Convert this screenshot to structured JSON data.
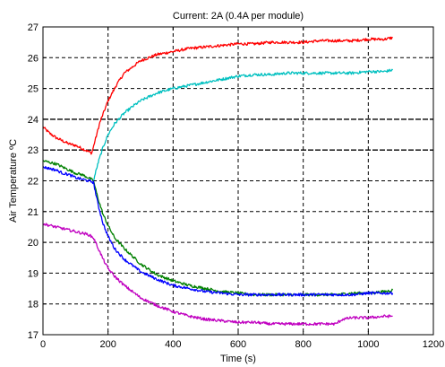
{
  "chart_data": {
    "type": "line",
    "title": "Current: 2A (0.4A per module)",
    "xlabel": "Time (s)",
    "ylabel": "Air Temperature ºC",
    "xlim": [
      0,
      1200
    ],
    "ylim": [
      17,
      27
    ],
    "x_ticks": [
      0,
      200,
      400,
      600,
      800,
      1000,
      1200
    ],
    "y_ticks": [
      17,
      18,
      19,
      20,
      21,
      22,
      23,
      24,
      25,
      26,
      27
    ],
    "grid": true,
    "grid_style": "dashed",
    "emphasized_y_gridlines": [
      23,
      24
    ],
    "legend": "none",
    "series": [
      {
        "color": "#ff0000",
        "x": [
          0,
          20,
          40,
          60,
          80,
          100,
          120,
          140,
          150,
          160,
          175,
          200,
          225,
          250,
          300,
          350,
          400,
          450,
          500,
          550,
          600,
          650,
          700,
          750,
          800,
          850,
          900,
          950,
          1000,
          1050,
          1075
        ],
        "y": [
          23.75,
          23.55,
          23.4,
          23.3,
          23.2,
          23.15,
          23.05,
          22.95,
          22.9,
          23.3,
          23.9,
          24.6,
          25.1,
          25.5,
          25.9,
          26.1,
          26.2,
          26.3,
          26.35,
          26.4,
          26.45,
          26.45,
          26.5,
          26.5,
          26.5,
          26.55,
          26.55,
          26.55,
          26.6,
          26.6,
          26.65
        ]
      },
      {
        "color": "#00c0c0",
        "x": [
          155,
          170,
          185,
          200,
          220,
          250,
          280,
          300,
          350,
          400,
          450,
          500,
          550,
          600,
          650,
          700,
          750,
          800,
          850,
          900,
          950,
          1000,
          1050,
          1075
        ],
        "y": [
          22.0,
          22.6,
          23.1,
          23.5,
          23.85,
          24.2,
          24.45,
          24.6,
          24.85,
          25.0,
          25.1,
          25.2,
          25.3,
          25.4,
          25.45,
          25.45,
          25.5,
          25.5,
          25.5,
          25.5,
          25.5,
          25.55,
          25.55,
          25.6
        ]
      },
      {
        "color": "#008000",
        "x": [
          0,
          20,
          40,
          60,
          80,
          100,
          120,
          140,
          155,
          170,
          185,
          200,
          220,
          250,
          300,
          350,
          400,
          450,
          500,
          550,
          600,
          650,
          700,
          750,
          800,
          850,
          900,
          950,
          1000,
          1050,
          1075
        ],
        "y": [
          22.65,
          22.6,
          22.55,
          22.45,
          22.35,
          22.25,
          22.2,
          22.1,
          22.0,
          21.4,
          20.9,
          20.55,
          20.15,
          19.8,
          19.3,
          18.95,
          18.75,
          18.6,
          18.5,
          18.4,
          18.35,
          18.3,
          18.3,
          18.3,
          18.3,
          18.3,
          18.3,
          18.35,
          18.35,
          18.4,
          18.45
        ]
      },
      {
        "color": "#0000ff",
        "x": [
          0,
          20,
          40,
          60,
          80,
          100,
          120,
          140,
          155,
          170,
          185,
          200,
          220,
          250,
          300,
          350,
          400,
          450,
          500,
          550,
          600,
          650,
          700,
          750,
          800,
          850,
          900,
          950,
          1000,
          1050,
          1075
        ],
        "y": [
          22.45,
          22.4,
          22.35,
          22.25,
          22.2,
          22.1,
          22.05,
          22.0,
          21.95,
          21.2,
          20.6,
          20.2,
          19.8,
          19.45,
          19.05,
          18.8,
          18.6,
          18.5,
          18.4,
          18.35,
          18.3,
          18.3,
          18.3,
          18.3,
          18.3,
          18.3,
          18.3,
          18.3,
          18.35,
          18.35,
          18.35
        ]
      },
      {
        "color": "#c000c0",
        "x": [
          0,
          20,
          40,
          60,
          80,
          100,
          120,
          140,
          155,
          170,
          185,
          200,
          220,
          250,
          300,
          350,
          400,
          450,
          500,
          550,
          600,
          650,
          700,
          750,
          800,
          850,
          900,
          920,
          950,
          1000,
          1050,
          1075
        ],
        "y": [
          20.6,
          20.55,
          20.5,
          20.45,
          20.4,
          20.35,
          20.3,
          20.25,
          20.15,
          19.8,
          19.45,
          19.15,
          18.9,
          18.6,
          18.2,
          17.95,
          17.75,
          17.6,
          17.5,
          17.45,
          17.4,
          17.4,
          17.35,
          17.35,
          17.35,
          17.35,
          17.35,
          17.5,
          17.55,
          17.55,
          17.6,
          17.6
        ]
      }
    ]
  }
}
